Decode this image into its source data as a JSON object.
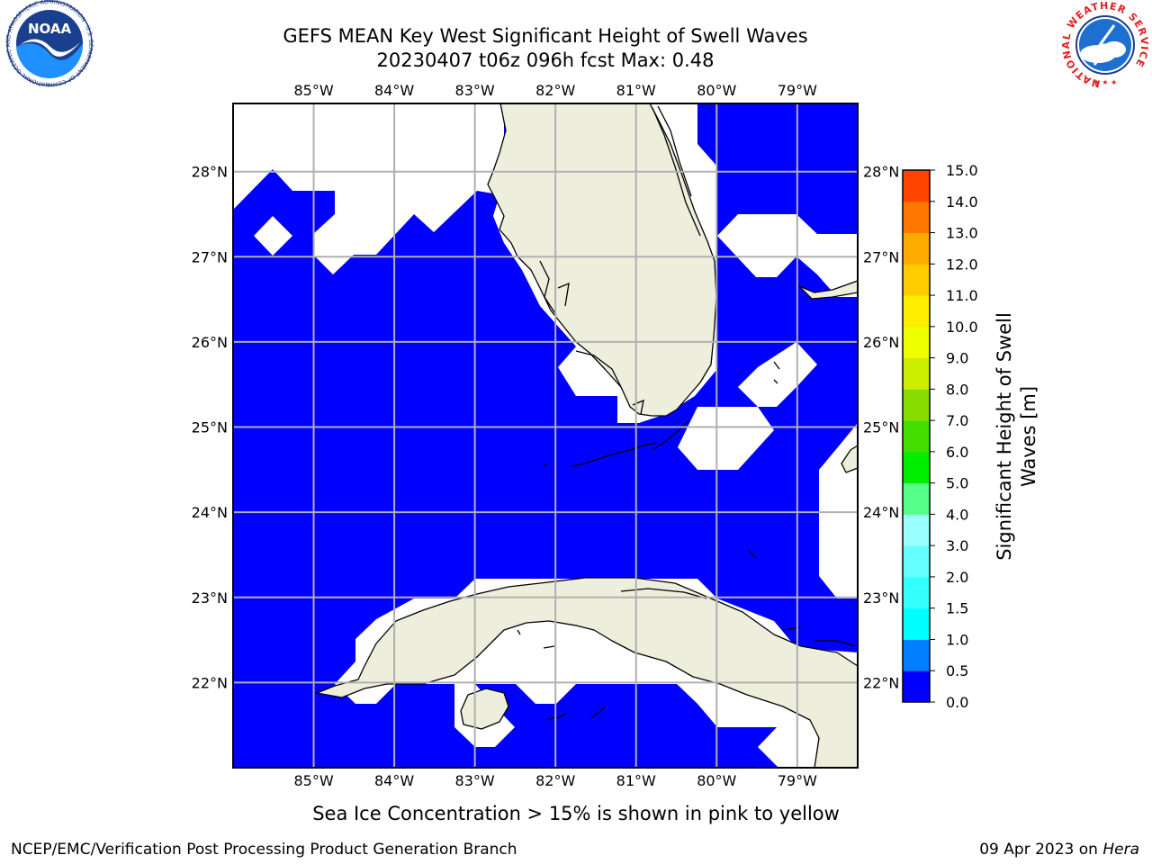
{
  "title": {
    "line1": "GEFS MEAN Key West Significant Height of Swell Waves",
    "line2": "20230407 t06z 096h fcst   Max: 0.48"
  },
  "map": {
    "lon_labels": [
      "85°W",
      "84°W",
      "83°W",
      "82°W",
      "81°W",
      "80°W",
      "79°W"
    ],
    "lat_labels": [
      "28°N",
      "27°N",
      "26°N",
      "25°N",
      "24°N",
      "23°N",
      "22°N"
    ],
    "lon_range": [
      -86.0,
      -78.25
    ],
    "lat_range": [
      21.0,
      28.8
    ],
    "ocean_color": "#0000ff",
    "land_color": "#eeeedd",
    "nodata_color": "#ffffff",
    "grid": true
  },
  "colorbar": {
    "label_line1": "Significant Height of Swell",
    "label_line2": "Waves [m]",
    "ticks": [
      "0.0",
      "0.5",
      "1.0",
      "1.5",
      "2.0",
      "3.0",
      "4.0",
      "5.0",
      "6.0",
      "7.0",
      "8.0",
      "9.0",
      "10.0",
      "11.0",
      "12.0",
      "13.0",
      "14.0",
      "15.0"
    ],
    "colors": [
      "#0000ff",
      "#0080ff",
      "#00ffff",
      "#33ffff",
      "#66ffff",
      "#99ffff",
      "#55ff88",
      "#00ee00",
      "#44dd00",
      "#88dd00",
      "#ccee00",
      "#eeff00",
      "#ffee00",
      "#ffcc00",
      "#ffaa00",
      "#ff7700",
      "#ff4400",
      "#ff0000"
    ]
  },
  "note": "Sea Ice Concentration > 15% is shown in pink to yellow",
  "footer": {
    "left": "NCEP/EMC/Verification Post Processing Product Generation Branch",
    "date": "09 Apr 2023 on ",
    "machine": "Hera"
  },
  "logos": {
    "left": "NOAA",
    "left_ring": "NATIONAL OCEANIC AND ATMOSPHERIC ADMINISTRATION · U.S. DEPARTMENT OF COMMERCE",
    "right_ring": "NATIONAL WEATHER SERVICE"
  }
}
